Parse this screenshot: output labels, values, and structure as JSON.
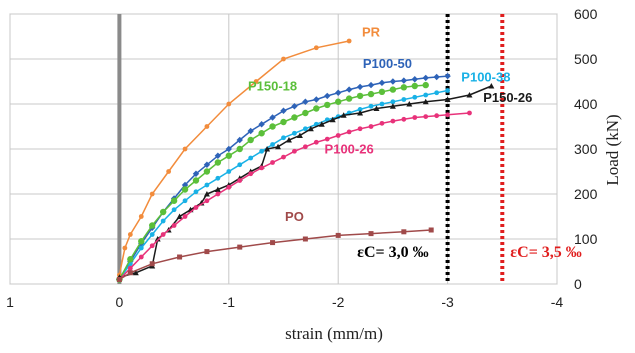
{
  "chart_data": {
    "type": "line",
    "xlabel": "strain (mm/m)",
    "ylabel": "Load (kN)",
    "xlim": [
      1,
      -4
    ],
    "ylim": [
      0,
      600
    ],
    "x_ticks": [
      1,
      0,
      -1,
      -2,
      -3,
      -4
    ],
    "y_ticks": [
      0,
      100,
      200,
      300,
      400,
      500,
      600
    ],
    "grid": true,
    "y_axis_side": "right",
    "series": [
      {
        "name": "PR",
        "color": "#f28c3c",
        "label_pos": [
          -2.3,
          550
        ],
        "points": [
          [
            0,
            20
          ],
          [
            -0.05,
            80
          ],
          [
            -0.1,
            110
          ],
          [
            -0.2,
            150
          ],
          [
            -0.3,
            200
          ],
          [
            -0.45,
            250
          ],
          [
            -0.6,
            300
          ],
          [
            -0.8,
            350
          ],
          [
            -1.0,
            400
          ],
          [
            -1.25,
            450
          ],
          [
            -1.5,
            500
          ],
          [
            -1.8,
            525
          ],
          [
            -2.1,
            540
          ]
        ]
      },
      {
        "name": "P100-50",
        "color": "#2e63b8",
        "label_pos": [
          -2.45,
          480
        ],
        "points": [
          [
            0,
            10
          ],
          [
            -0.1,
            50
          ],
          [
            -0.2,
            90
          ],
          [
            -0.3,
            125
          ],
          [
            -0.4,
            160
          ],
          [
            -0.5,
            190
          ],
          [
            -0.6,
            220
          ],
          [
            -0.7,
            245
          ],
          [
            -0.8,
            265
          ],
          [
            -0.9,
            285
          ],
          [
            -1.0,
            300
          ],
          [
            -1.1,
            320
          ],
          [
            -1.2,
            340
          ],
          [
            -1.3,
            355
          ],
          [
            -1.4,
            370
          ],
          [
            -1.5,
            385
          ],
          [
            -1.6,
            395
          ],
          [
            -1.7,
            405
          ],
          [
            -1.8,
            410
          ],
          [
            -1.9,
            418
          ],
          [
            -2.0,
            425
          ],
          [
            -2.1,
            432
          ],
          [
            -2.2,
            438
          ],
          [
            -2.3,
            442
          ],
          [
            -2.4,
            447
          ],
          [
            -2.5,
            450
          ],
          [
            -2.6,
            452
          ],
          [
            -2.7,
            455
          ],
          [
            -2.8,
            458
          ],
          [
            -2.9,
            460
          ],
          [
            -3.0,
            462
          ]
        ]
      },
      {
        "name": "P100-38",
        "color": "#19b1e6",
        "label_pos": [
          -3.35,
          450
        ],
        "points": [
          [
            0,
            10
          ],
          [
            -0.1,
            45
          ],
          [
            -0.2,
            80
          ],
          [
            -0.3,
            110
          ],
          [
            -0.4,
            140
          ],
          [
            -0.5,
            165
          ],
          [
            -0.6,
            185
          ],
          [
            -0.7,
            205
          ],
          [
            -0.8,
            220
          ],
          [
            -0.9,
            235
          ],
          [
            -1.0,
            250
          ],
          [
            -1.1,
            265
          ],
          [
            -1.2,
            280
          ],
          [
            -1.3,
            295
          ],
          [
            -1.4,
            310
          ],
          [
            -1.5,
            325
          ],
          [
            -1.6,
            335
          ],
          [
            -1.7,
            345
          ],
          [
            -1.8,
            355
          ],
          [
            -1.9,
            365
          ],
          [
            -2.0,
            372
          ],
          [
            -2.1,
            380
          ],
          [
            -2.2,
            388
          ],
          [
            -2.3,
            395
          ],
          [
            -2.4,
            400
          ],
          [
            -2.5,
            405
          ],
          [
            -2.6,
            410
          ],
          [
            -2.7,
            415
          ],
          [
            -2.8,
            420
          ],
          [
            -2.9,
            425
          ],
          [
            -3.0,
            430
          ]
        ]
      },
      {
        "name": "P150-18",
        "color": "#5bbf3a",
        "label_pos": [
          -1.4,
          430
        ],
        "points": [
          [
            0,
            10
          ],
          [
            -0.1,
            55
          ],
          [
            -0.2,
            95
          ],
          [
            -0.3,
            130
          ],
          [
            -0.4,
            160
          ],
          [
            -0.5,
            185
          ],
          [
            -0.6,
            210
          ],
          [
            -0.7,
            230
          ],
          [
            -0.8,
            250
          ],
          [
            -0.9,
            270
          ],
          [
            -1.0,
            285
          ],
          [
            -1.1,
            300
          ],
          [
            -1.2,
            320
          ],
          [
            -1.3,
            335
          ],
          [
            -1.4,
            350
          ],
          [
            -1.5,
            360
          ],
          [
            -1.6,
            370
          ],
          [
            -1.7,
            380
          ],
          [
            -1.8,
            390
          ],
          [
            -1.9,
            398
          ],
          [
            -2.0,
            405
          ],
          [
            -2.1,
            412
          ],
          [
            -2.2,
            418
          ],
          [
            -2.3,
            422
          ],
          [
            -2.4,
            427
          ],
          [
            -2.5,
            432
          ],
          [
            -2.6,
            437
          ],
          [
            -2.7,
            440
          ],
          [
            -2.8,
            442
          ]
        ]
      },
      {
        "name": "P150-26",
        "color": "#1a1a1a",
        "label_pos": [
          -3.55,
          405
        ],
        "points": [
          [
            0,
            15
          ],
          [
            -0.15,
            25
          ],
          [
            -0.3,
            40
          ],
          [
            -0.35,
            100
          ],
          [
            -0.45,
            120
          ],
          [
            -0.55,
            150
          ],
          [
            -0.65,
            165
          ],
          [
            -0.75,
            180
          ],
          [
            -0.8,
            200
          ],
          [
            -0.9,
            210
          ],
          [
            -1.0,
            220
          ],
          [
            -1.1,
            235
          ],
          [
            -1.2,
            250
          ],
          [
            -1.3,
            262
          ],
          [
            -1.35,
            300
          ],
          [
            -1.45,
            305
          ],
          [
            -1.55,
            320
          ],
          [
            -1.65,
            330
          ],
          [
            -1.75,
            345
          ],
          [
            -1.85,
            355
          ],
          [
            -1.95,
            365
          ],
          [
            -2.05,
            375
          ],
          [
            -2.2,
            380
          ],
          [
            -2.35,
            390
          ],
          [
            -2.5,
            395
          ],
          [
            -2.65,
            400
          ],
          [
            -2.8,
            405
          ],
          [
            -3.0,
            410
          ],
          [
            -3.2,
            420
          ],
          [
            -3.4,
            440
          ]
        ]
      },
      {
        "name": "P100-26",
        "color": "#e8327a",
        "label_pos": [
          -2.1,
          290
        ],
        "points": [
          [
            0,
            10
          ],
          [
            -0.1,
            35
          ],
          [
            -0.2,
            60
          ],
          [
            -0.3,
            85
          ],
          [
            -0.4,
            110
          ],
          [
            -0.5,
            130
          ],
          [
            -0.6,
            150
          ],
          [
            -0.7,
            170
          ],
          [
            -0.8,
            185
          ],
          [
            -0.9,
            200
          ],
          [
            -1.0,
            215
          ],
          [
            -1.1,
            230
          ],
          [
            -1.2,
            245
          ],
          [
            -1.3,
            258
          ],
          [
            -1.4,
            270
          ],
          [
            -1.5,
            282
          ],
          [
            -1.6,
            295
          ],
          [
            -1.7,
            305
          ],
          [
            -1.8,
            315
          ],
          [
            -1.9,
            322
          ],
          [
            -2.0,
            330
          ],
          [
            -2.1,
            338
          ],
          [
            -2.2,
            345
          ],
          [
            -2.3,
            350
          ],
          [
            -2.4,
            357
          ],
          [
            -2.5,
            362
          ],
          [
            -2.6,
            366
          ],
          [
            -2.7,
            370
          ],
          [
            -2.8,
            372
          ],
          [
            -2.9,
            374
          ],
          [
            -3.0,
            376
          ],
          [
            -3.2,
            380
          ]
        ]
      },
      {
        "name": "PO",
        "color": "#a04a4a",
        "label_pos": [
          -1.6,
          140
        ],
        "points": [
          [
            0,
            10
          ],
          [
            -0.1,
            25
          ],
          [
            -0.3,
            45
          ],
          [
            -0.55,
            60
          ],
          [
            -0.8,
            72
          ],
          [
            -1.1,
            82
          ],
          [
            -1.4,
            92
          ],
          [
            -1.7,
            100
          ],
          [
            -2.0,
            108
          ],
          [
            -2.3,
            112
          ],
          [
            -2.6,
            116
          ],
          [
            -2.85,
            120
          ]
        ]
      }
    ],
    "limits": [
      {
        "x": -3.0,
        "color": "#000000",
        "label": "εC= 3,0 ‰",
        "label_pos": [
          -2.5,
          60
        ]
      },
      {
        "x": -3.5,
        "color": "#e01e1e",
        "label": "εC= 3,5 ‰",
        "label_pos": [
          -3.9,
          60
        ]
      }
    ]
  }
}
